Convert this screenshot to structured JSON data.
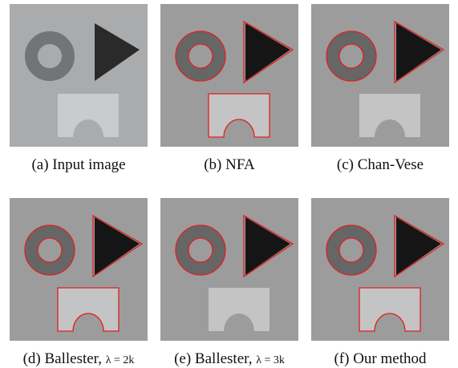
{
  "panels": [
    {
      "caption": "(a) Input image"
    },
    {
      "caption": "(b) NFA"
    },
    {
      "caption": "(c) Chan-Vese"
    },
    {
      "caption": "(d) Ballester, ",
      "param": "λ = 2k"
    },
    {
      "caption": "(e) Ballester, ",
      "param": "λ = 3k"
    },
    {
      "caption": "(f) Our method"
    }
  ]
}
